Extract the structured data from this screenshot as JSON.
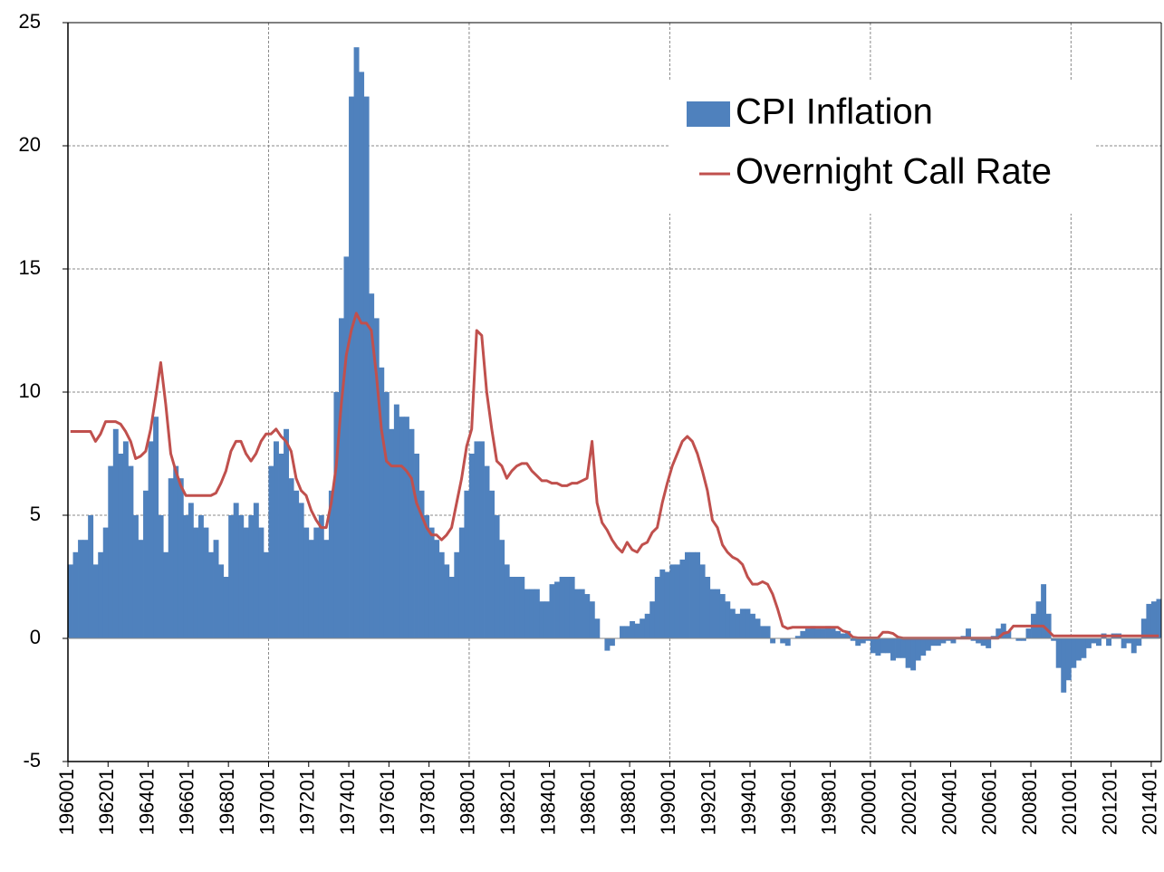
{
  "chart_data": {
    "type": "bar",
    "categories": [
      "196001",
      null,
      null,
      null,
      null,
      null,
      null,
      null,
      "196201",
      null,
      null,
      null,
      null,
      null,
      null,
      null,
      "196401",
      null,
      null,
      null,
      null,
      null,
      null,
      null,
      "196601",
      null,
      null,
      null,
      null,
      null,
      null,
      null,
      "196801",
      null,
      null,
      null,
      null,
      null,
      null,
      null,
      "197001",
      null,
      null,
      null,
      null,
      null,
      null,
      null,
      "197201",
      null,
      null,
      null,
      null,
      null,
      null,
      null,
      "197401",
      null,
      null,
      null,
      null,
      null,
      null,
      null,
      "197601",
      null,
      null,
      null,
      null,
      null,
      null,
      null,
      "197801",
      null,
      null,
      null,
      null,
      null,
      null,
      null,
      "198001",
      null,
      null,
      null,
      null,
      null,
      null,
      null,
      "198201",
      null,
      null,
      null,
      null,
      null,
      null,
      null,
      "198401",
      null,
      null,
      null,
      null,
      null,
      null,
      null,
      "198601",
      null,
      null,
      null,
      null,
      null,
      null,
      null,
      "198801",
      null,
      null,
      null,
      null,
      null,
      null,
      null,
      "199001",
      null,
      null,
      null,
      null,
      null,
      null,
      null,
      "199201",
      null,
      null,
      null,
      null,
      null,
      null,
      null,
      "199401",
      null,
      null,
      null,
      null,
      null,
      null,
      null,
      "199601",
      null,
      null,
      null,
      null,
      null,
      null,
      null,
      "199801",
      null,
      null,
      null,
      null,
      null,
      null,
      null,
      "200001",
      null,
      null,
      null,
      null,
      null,
      null,
      null,
      "200201",
      null,
      null,
      null,
      null,
      null,
      null,
      null,
      "200401",
      null,
      null,
      null,
      null,
      null,
      null,
      null,
      "200601",
      null,
      null,
      null,
      null,
      null,
      null,
      null,
      "200801",
      null,
      null,
      null,
      null,
      null,
      null,
      null,
      "201001",
      null,
      null,
      null,
      null,
      null,
      null,
      null,
      "201201",
      null,
      null,
      null,
      null,
      null,
      null,
      null,
      "201401",
      null
    ],
    "series": [
      {
        "name": "CPI Inflation",
        "type": "bar",
        "color": "#4f81bd",
        "values": [
          3,
          3.5,
          4,
          4,
          5,
          3,
          3.5,
          4.5,
          7,
          8.5,
          7.5,
          8,
          7,
          5,
          4,
          6,
          8,
          9,
          5,
          3.5,
          6.5,
          7,
          6.5,
          5,
          5.5,
          4.5,
          5,
          4.5,
          3.5,
          4,
          3,
          2.5,
          5,
          5.5,
          5,
          4.5,
          5,
          5.5,
          4.5,
          3.5,
          7,
          8,
          7.5,
          8.5,
          6.5,
          6,
          5.5,
          4.5,
          4,
          4.5,
          5,
          4,
          6,
          10,
          13,
          15.5,
          22,
          24,
          23,
          22,
          14,
          13,
          11,
          10,
          8.5,
          9.5,
          9,
          9,
          8.5,
          7.5,
          6,
          5,
          4.5,
          4,
          3.5,
          3,
          2.5,
          3.5,
          4.5,
          6,
          7.5,
          8,
          8,
          7,
          6,
          5,
          4,
          3,
          2.5,
          2.5,
          2.5,
          2,
          2,
          2,
          1.5,
          1.5,
          2.2,
          2.3,
          2.5,
          2.5,
          2.5,
          2,
          2,
          1.8,
          1.5,
          0.8,
          0,
          -0.5,
          -0.3,
          0,
          0.5,
          0.5,
          0.7,
          0.6,
          0.8,
          1,
          1.5,
          2.5,
          2.8,
          2.7,
          3,
          3,
          3.2,
          3.5,
          3.5,
          3.5,
          3,
          2.5,
          2,
          2,
          1.8,
          1.5,
          1.2,
          1,
          1.2,
          1.2,
          1,
          0.8,
          0.5,
          0.5,
          -0.2,
          0,
          -0.2,
          -0.3,
          0,
          0.1,
          0.3,
          0.4,
          0.5,
          0.4,
          0.4,
          0.5,
          0.4,
          0.3,
          0.2,
          0.3,
          -0.1,
          -0.3,
          -0.2,
          -0.1,
          -0.6,
          -0.7,
          -0.6,
          -0.6,
          -0.9,
          -0.8,
          -0.8,
          -1.2,
          -1.3,
          -0.9,
          -0.7,
          -0.5,
          -0.3,
          -0.3,
          -0.2,
          -0.1,
          -0.2,
          0,
          0.1,
          0.4,
          -0.1,
          -0.2,
          -0.3,
          -0.4,
          0.1,
          0.4,
          0.6,
          0.3,
          0,
          -0.1,
          -0.1,
          0.4,
          1,
          1.5,
          2.2,
          1,
          -0.1,
          -1.2,
          -2.2,
          -1.7,
          -1.2,
          -0.9,
          -0.8,
          -0.4,
          -0.2,
          -0.3,
          0.2,
          -0.3,
          0.2,
          0.2,
          -0.4,
          -0.2,
          -0.6,
          -0.3,
          0.8,
          1.4,
          1.5,
          1.6
        ]
      },
      {
        "name": "Overnight Call Rate",
        "type": "line",
        "color": "#c0504d",
        "values": [
          8.4,
          8.4,
          8.4,
          8.4,
          8.4,
          8.0,
          8.3,
          8.8,
          8.8,
          8.8,
          8.7,
          8.4,
          8.0,
          7.3,
          7.4,
          7.6,
          8.5,
          9.8,
          11.2,
          9.5,
          7.5,
          6.8,
          6.2,
          5.8,
          5.8,
          5.8,
          5.8,
          5.8,
          5.8,
          5.9,
          6.3,
          6.8,
          7.6,
          8.0,
          8.0,
          7.5,
          7.2,
          7.5,
          8.0,
          8.3,
          8.3,
          8.5,
          8.2,
          8.0,
          7.6,
          6.5,
          6.0,
          5.8,
          5.2,
          4.8,
          4.5,
          4.5,
          5.5,
          7.0,
          9.5,
          11.5,
          12.5,
          13.2,
          12.8,
          12.8,
          12.5,
          10.7,
          8.5,
          7.2,
          7.0,
          7.0,
          7.0,
          6.8,
          6.5,
          5.5,
          5.0,
          4.5,
          4.2,
          4.2,
          4.0,
          4.2,
          4.5,
          5.5,
          6.5,
          7.8,
          8.5,
          12.5,
          12.3,
          10.0,
          8.5,
          7.2,
          7.0,
          6.5,
          6.8,
          7.0,
          7.1,
          7.1,
          6.8,
          6.6,
          6.4,
          6.4,
          6.3,
          6.3,
          6.2,
          6.2,
          6.3,
          6.3,
          6.4,
          6.5,
          8.0,
          5.5,
          4.7,
          4.4,
          4.0,
          3.7,
          3.5,
          3.9,
          3.6,
          3.5,
          3.8,
          3.9,
          4.3,
          4.5,
          5.5,
          6.3,
          7.0,
          7.5,
          8.0,
          8.2,
          8.0,
          7.5,
          6.8,
          6.0,
          4.8,
          4.5,
          3.8,
          3.5,
          3.3,
          3.2,
          3.0,
          2.5,
          2.2,
          2.2,
          2.3,
          2.2,
          1.8,
          1.2,
          0.5,
          0.4,
          0.45,
          0.45,
          0.45,
          0.45,
          0.45,
          0.45,
          0.45,
          0.45,
          0.45,
          0.45,
          0.3,
          0.25,
          0.05,
          0.02,
          0.02,
          0.02,
          0.02,
          0.02,
          0.25,
          0.25,
          0.2,
          0.05,
          0.01,
          0.01,
          0.01,
          0.01,
          0.01,
          0.01,
          0.01,
          0.01,
          0.01,
          0.01,
          0.01,
          0.01,
          0.01,
          0.01,
          0.01,
          0.01,
          0.01,
          0.01,
          0.01,
          0.01,
          0.2,
          0.25,
          0.5,
          0.5,
          0.5,
          0.5,
          0.5,
          0.5,
          0.5,
          0.3,
          0.1,
          0.1,
          0.1,
          0.1,
          0.1,
          0.1,
          0.1,
          0.1,
          0.1,
          0.1,
          0.1,
          0.1,
          0.1,
          0.1,
          0.1,
          0.1,
          0.1,
          0.1,
          0.1,
          0.1,
          0.1,
          0.1
        ]
      }
    ],
    "ylim": [
      -5,
      25
    ],
    "yticks": [
      -5,
      0,
      5,
      10,
      15,
      20,
      25
    ],
    "grid": true,
    "legend": "upper right"
  }
}
